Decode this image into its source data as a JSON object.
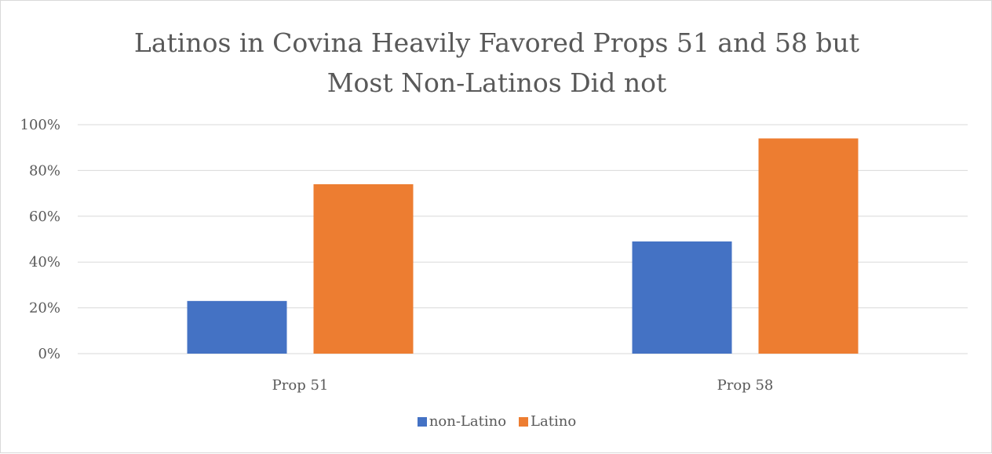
{
  "chart_data": {
    "type": "bar",
    "title": "Latinos in Covina Heavily Favored Props 51 and 58 but Most Non-Latinos Did not",
    "title_lines": [
      "Latinos in Covina Heavily Favored Props 51 and 58 but",
      "Most Non-Latinos Did not"
    ],
    "categories": [
      "Prop 51",
      "Prop 58"
    ],
    "series": [
      {
        "name": "non-Latino",
        "color": "#4472c4",
        "values": [
          23,
          49
        ]
      },
      {
        "name": "Latino",
        "color": "#ed7d31",
        "values": [
          74,
          94
        ]
      }
    ],
    "ylim": [
      0,
      100
    ],
    "yticks": [
      0,
      20,
      40,
      60,
      80,
      100
    ],
    "ytick_labels": [
      "0%",
      "20%",
      "40%",
      "60%",
      "80%",
      "100%"
    ],
    "xlabel": "",
    "ylabel": "",
    "grid": true,
    "legend_position": "bottom"
  }
}
